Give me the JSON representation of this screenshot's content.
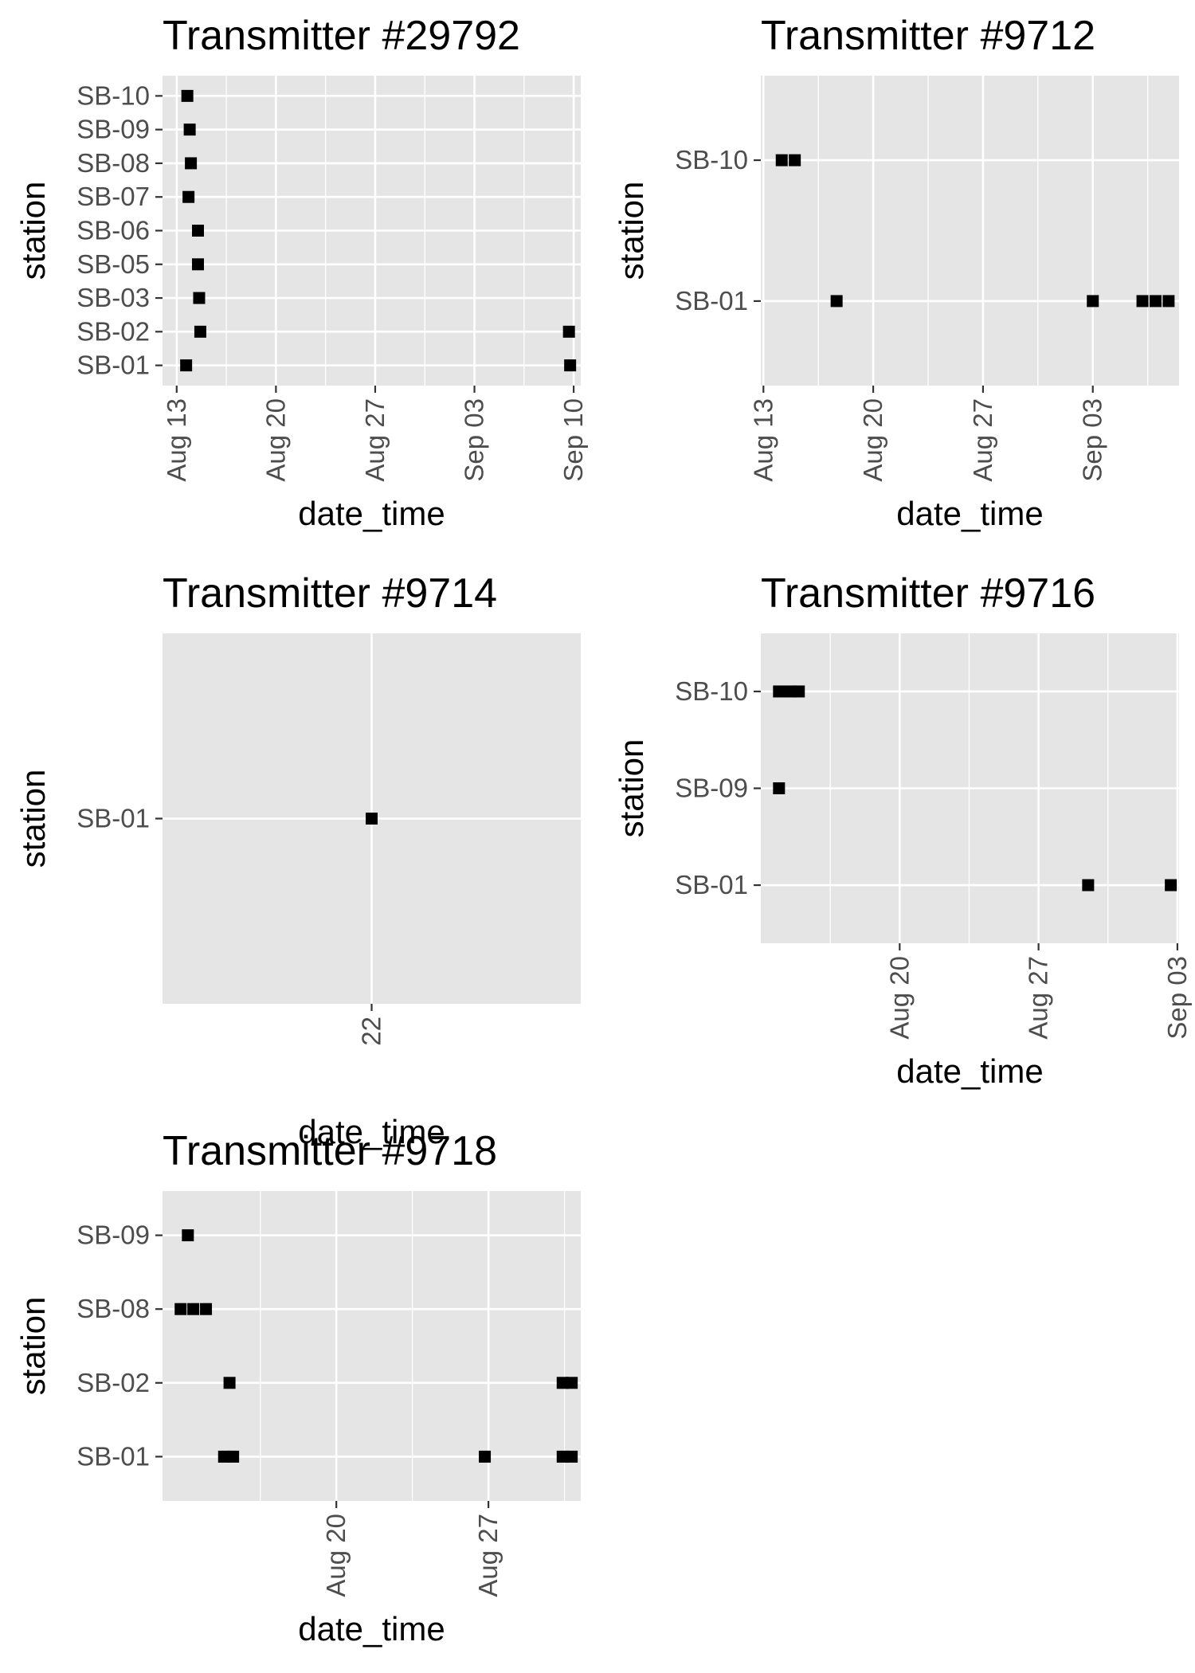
{
  "figure": {
    "background": "#ffffff",
    "panel_background": "#e5e5e5",
    "gridline_color": "#ffffff",
    "point_color": "#000000",
    "tick_color": "#333333"
  },
  "chart_data": [
    {
      "type": "scatter",
      "title": "Transmitter #29792",
      "xlabel": "date_time",
      "ylabel": "station",
      "x_axis": "date",
      "xlim": [
        "2023-08-12T00:00",
        "2023-09-10T12:00"
      ],
      "x_ticks": [
        {
          "value": "2023-08-13",
          "label": "Aug 13"
        },
        {
          "value": "2023-08-20",
          "label": "Aug 20"
        },
        {
          "value": "2023-08-27",
          "label": "Aug 27"
        },
        {
          "value": "2023-09-03",
          "label": "Sep 03"
        },
        {
          "value": "2023-09-10",
          "label": "Sep 10"
        }
      ],
      "categories": [
        "SB-01",
        "SB-02",
        "SB-03",
        "SB-05",
        "SB-06",
        "SB-07",
        "SB-08",
        "SB-09",
        "SB-10"
      ],
      "points": [
        {
          "x": "2023-08-13T18:00",
          "y": "SB-10"
        },
        {
          "x": "2023-08-13T22:00",
          "y": "SB-09"
        },
        {
          "x": "2023-08-14T00:00",
          "y": "SB-08"
        },
        {
          "x": "2023-08-13T20:00",
          "y": "SB-07"
        },
        {
          "x": "2023-08-14T12:00",
          "y": "SB-06"
        },
        {
          "x": "2023-08-14T12:00",
          "y": "SB-05"
        },
        {
          "x": "2023-08-14T14:00",
          "y": "SB-03"
        },
        {
          "x": "2023-08-14T16:00",
          "y": "SB-02"
        },
        {
          "x": "2023-08-13T16:00",
          "y": "SB-01"
        },
        {
          "x": "2023-09-09T16:00",
          "y": "SB-02"
        },
        {
          "x": "2023-09-09T18:00",
          "y": "SB-01"
        }
      ]
    },
    {
      "type": "scatter",
      "title": "Transmitter #9712",
      "xlabel": "date_time",
      "ylabel": "station",
      "x_axis": "date",
      "xlim": [
        "2023-08-12T20:00",
        "2023-09-08T12:00"
      ],
      "x_ticks": [
        {
          "value": "2023-08-13",
          "label": "Aug 13"
        },
        {
          "value": "2023-08-20",
          "label": "Aug 20"
        },
        {
          "value": "2023-08-27",
          "label": "Aug 27"
        },
        {
          "value": "2023-09-03",
          "label": "Sep 03"
        }
      ],
      "categories": [
        "SB-01",
        "SB-10"
      ],
      "points": [
        {
          "x": "2023-08-14T04:00",
          "y": "SB-10"
        },
        {
          "x": "2023-08-15T00:00",
          "y": "SB-10"
        },
        {
          "x": "2023-08-17T16:00",
          "y": "SB-01"
        },
        {
          "x": "2023-09-03T00:00",
          "y": "SB-01"
        },
        {
          "x": "2023-09-06T04:00",
          "y": "SB-01"
        },
        {
          "x": "2023-09-07T00:00",
          "y": "SB-01"
        },
        {
          "x": "2023-09-07T20:00",
          "y": "SB-01"
        }
      ]
    },
    {
      "type": "scatter",
      "title": "Transmitter #9714",
      "xlabel": "date_time",
      "ylabel": "station",
      "x_axis": "hour",
      "xlim": [
        21.0,
        23.0
      ],
      "x_ticks": [
        {
          "value": 22,
          "label": "22"
        }
      ],
      "categories": [
        "SB-01"
      ],
      "points": [
        {
          "x": 22.0,
          "y": "SB-01"
        }
      ]
    },
    {
      "type": "scatter",
      "title": "Transmitter #9716",
      "xlabel": "date_time",
      "ylabel": "station",
      "x_axis": "date",
      "xlim": [
        "2023-08-13T00:00",
        "2023-09-03T02:00"
      ],
      "x_ticks": [
        {
          "value": "2023-08-20",
          "label": "Aug 20"
        },
        {
          "value": "2023-08-27",
          "label": "Aug 27"
        },
        {
          "value": "2023-09-03",
          "label": "Sep 03"
        }
      ],
      "categories": [
        "SB-01",
        "SB-09",
        "SB-10"
      ],
      "points": [
        {
          "x": "2023-08-13T22:00",
          "y": "SB-10"
        },
        {
          "x": "2023-08-14T12:00",
          "y": "SB-10"
        },
        {
          "x": "2023-08-14T22:00",
          "y": "SB-10"
        },
        {
          "x": "2023-08-13T22:00",
          "y": "SB-09"
        },
        {
          "x": "2023-08-29T12:00",
          "y": "SB-01"
        },
        {
          "x": "2023-09-02T16:00",
          "y": "SB-01"
        }
      ]
    },
    {
      "type": "scatter",
      "title": "Transmitter #9718",
      "xlabel": "date_time",
      "ylabel": "station",
      "x_axis": "date",
      "xlim": [
        "2023-08-12T00:00",
        "2023-08-31T06:00"
      ],
      "x_ticks": [
        {
          "value": "2023-08-20",
          "label": "Aug 20"
        },
        {
          "value": "2023-08-27",
          "label": "Aug 27"
        }
      ],
      "categories": [
        "SB-01",
        "SB-02",
        "SB-08",
        "SB-09"
      ],
      "points": [
        {
          "x": "2023-08-13T04:00",
          "y": "SB-09"
        },
        {
          "x": "2023-08-12T20:00",
          "y": "SB-08"
        },
        {
          "x": "2023-08-13T10:00",
          "y": "SB-08"
        },
        {
          "x": "2023-08-14T00:00",
          "y": "SB-08"
        },
        {
          "x": "2023-08-15T02:00",
          "y": "SB-02"
        },
        {
          "x": "2023-08-30T10:00",
          "y": "SB-02"
        },
        {
          "x": "2023-08-30T20:00",
          "y": "SB-02"
        },
        {
          "x": "2023-08-14T20:00",
          "y": "SB-01"
        },
        {
          "x": "2023-08-15T06:00",
          "y": "SB-01"
        },
        {
          "x": "2023-08-26T20:00",
          "y": "SB-01"
        },
        {
          "x": "2023-08-30T10:00",
          "y": "SB-01"
        },
        {
          "x": "2023-08-30T20:00",
          "y": "SB-01"
        }
      ]
    }
  ]
}
